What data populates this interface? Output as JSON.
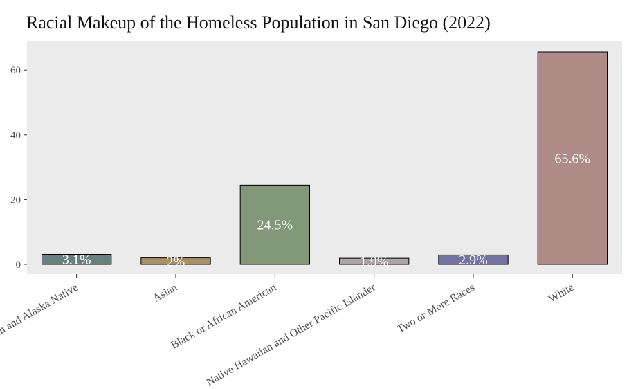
{
  "chart_data": {
    "type": "bar",
    "title": "Racial Makeup of the Homeless Population in San Diego (2022)",
    "xlabel": "",
    "ylabel": "",
    "ylim": [
      0,
      68
    ],
    "yticks": [
      0,
      20,
      40,
      60
    ],
    "grid": false,
    "categories": [
      "American Indian and Alaska Native",
      "Asian",
      "Black or African American",
      "Native Hawaiian and Other Pacific Islander",
      "Two or More Races",
      "White"
    ],
    "values": [
      3.1,
      2,
      24.5,
      1.9,
      2.9,
      65.6
    ],
    "labels": [
      "3.1%",
      "2%",
      "24.5%",
      "1.9%",
      "2.9%",
      "65.6%"
    ],
    "colors": [
      "#6a7f80",
      "#a89063",
      "#829878",
      "#aaa2a6",
      "#7273a3",
      "#ae8b86"
    ],
    "panel_background": "#ebebeb"
  }
}
